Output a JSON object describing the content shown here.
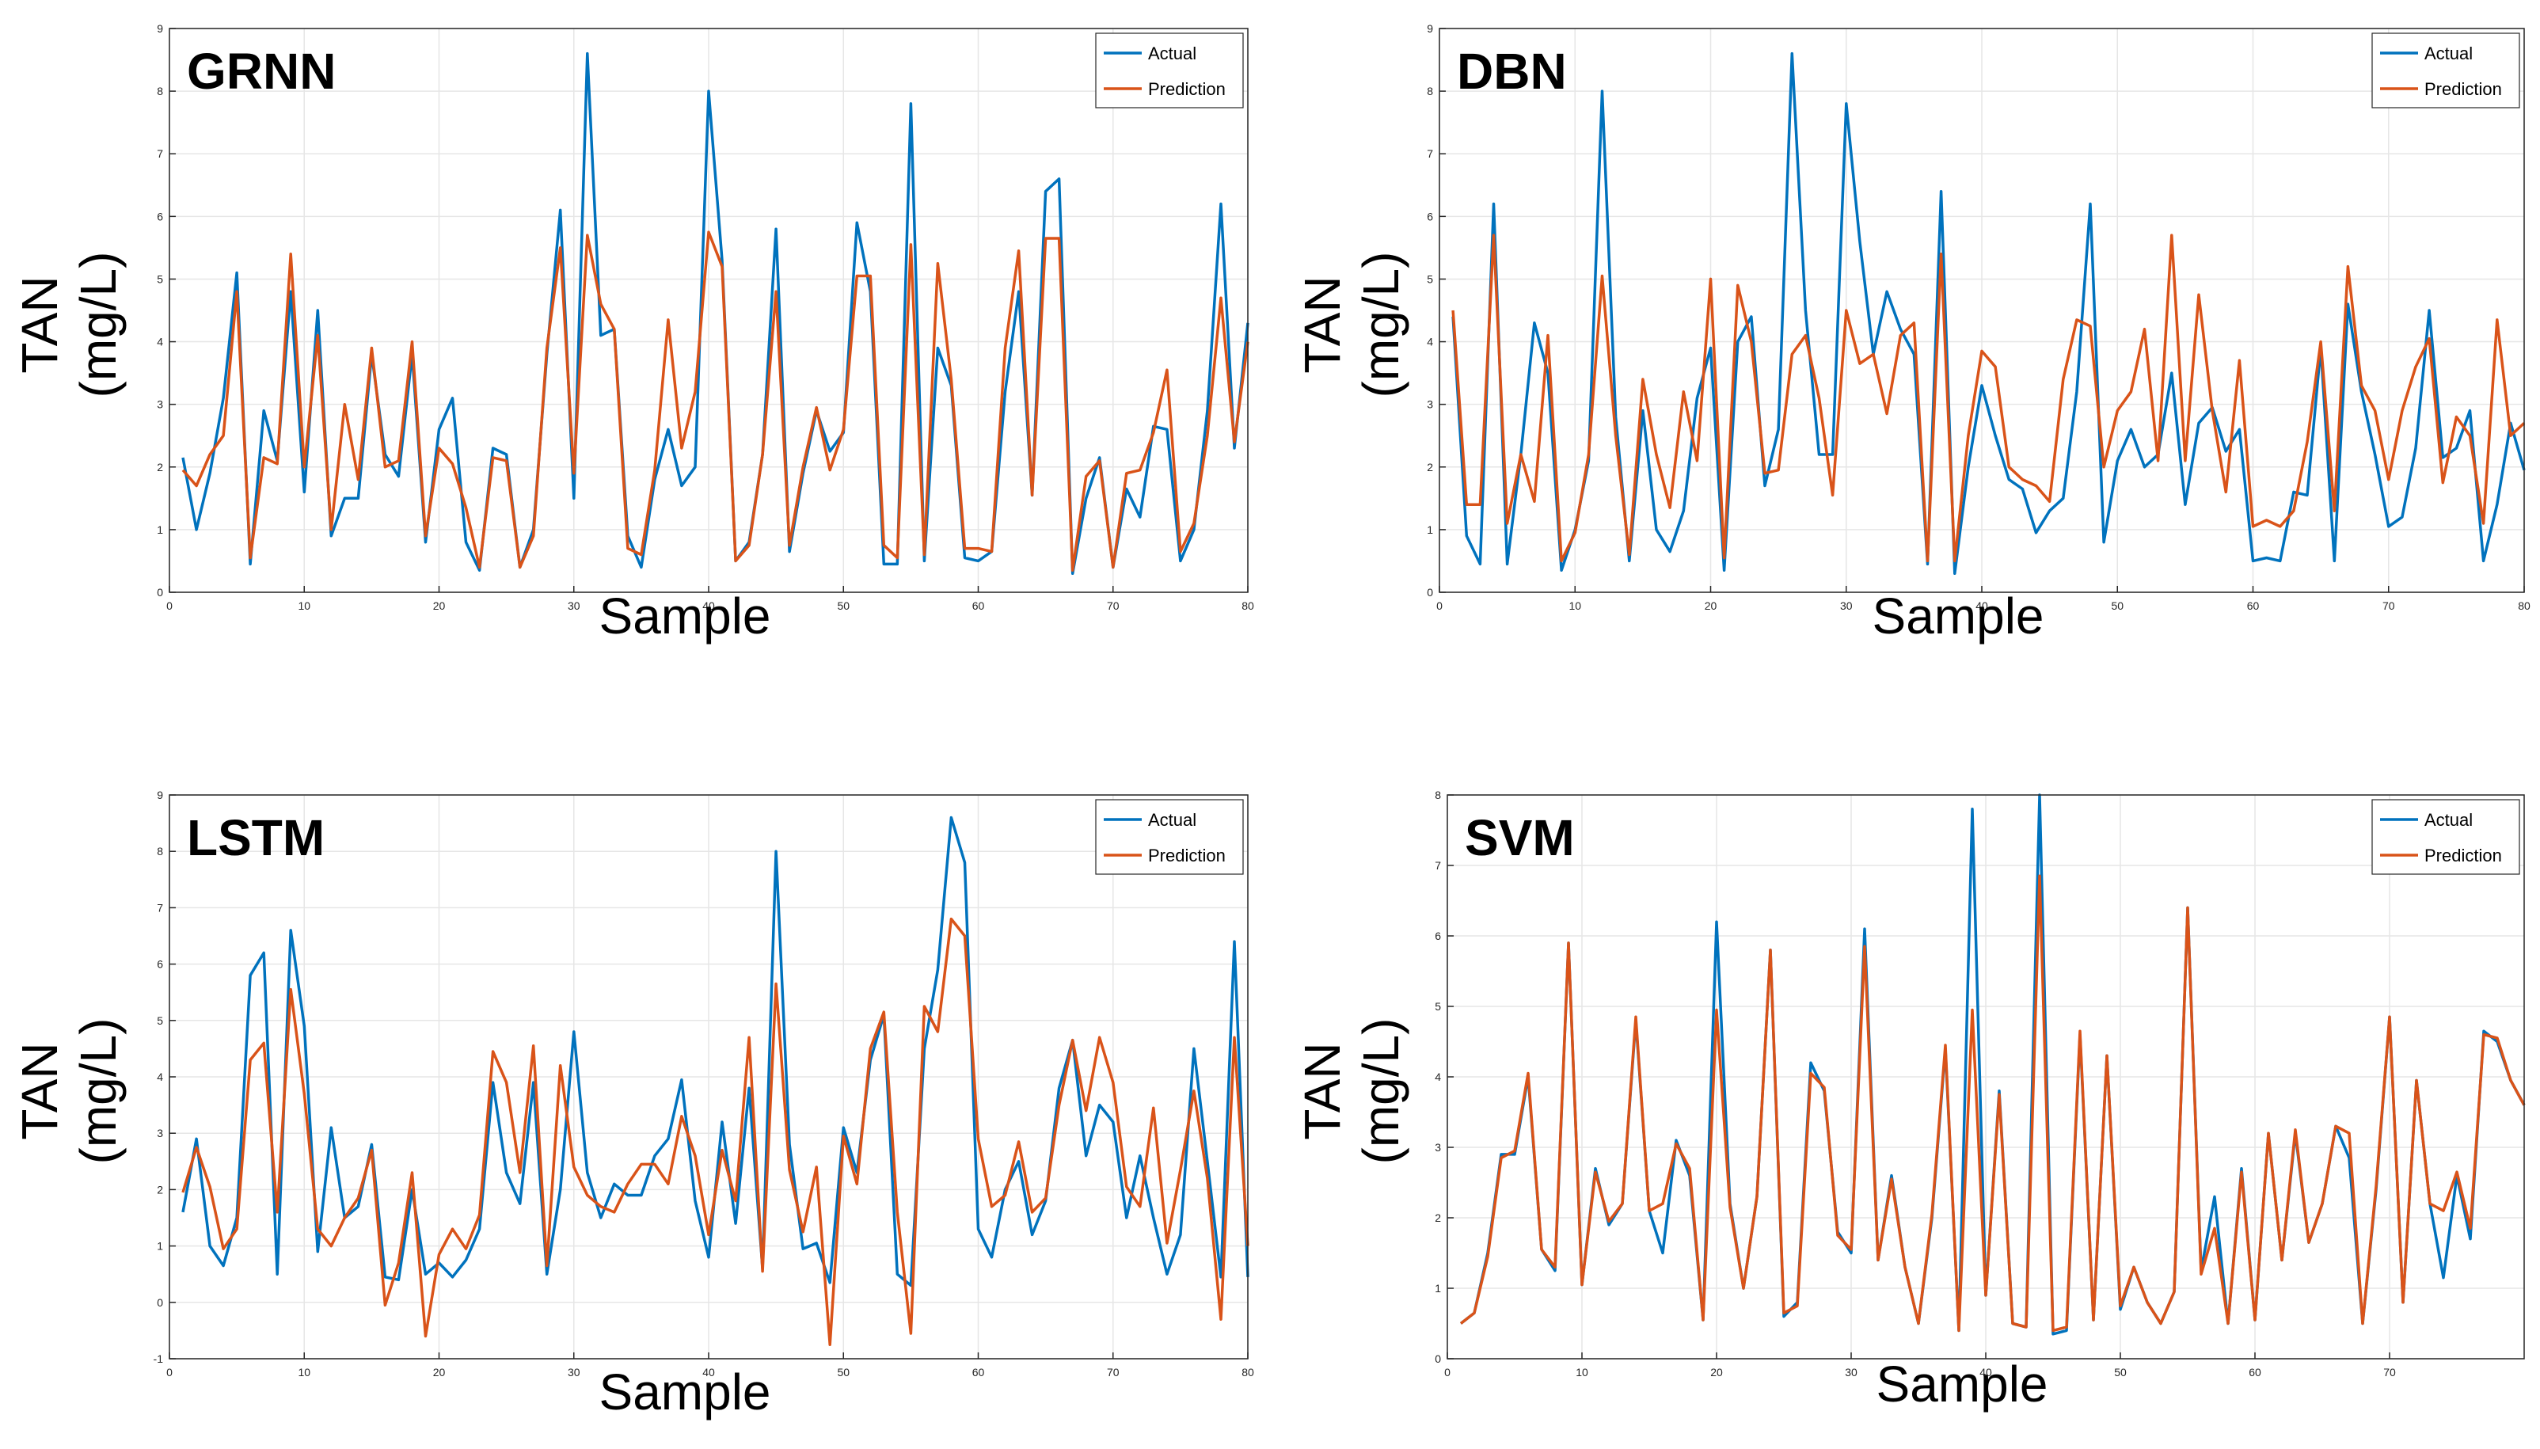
{
  "colors": {
    "actual": "#0072BD",
    "prediction": "#D95319",
    "grid": "#e6e6e6",
    "axis": "#262626"
  },
  "chart_data": [
    {
      "type": "line",
      "title": "GRNN",
      "xlabel": "Sample",
      "ylabel": [
        "TAN",
        "(mg/L)"
      ],
      "xlim": [
        0,
        80
      ],
      "ylim": [
        0,
        9
      ],
      "xticks": [
        0,
        10,
        20,
        30,
        40,
        50,
        60,
        70,
        80
      ],
      "yticks": [
        0,
        1,
        2,
        3,
        4,
        5,
        6,
        7,
        8,
        9
      ],
      "legend": [
        "Actual",
        "Prediction"
      ],
      "legend_location": "top-right",
      "x_start": 1,
      "series": [
        {
          "name": "Actual",
          "values": [
            2.15,
            1.0,
            1.9,
            3.1,
            5.1,
            0.45,
            2.9,
            2.1,
            4.8,
            1.6,
            4.5,
            0.9,
            1.5,
            1.5,
            3.8,
            2.2,
            1.85,
            3.8,
            0.8,
            2.6,
            3.1,
            0.8,
            0.35,
            2.3,
            2.2,
            0.4,
            1.0,
            3.8,
            6.1,
            1.5,
            8.6,
            4.1,
            4.2,
            0.9,
            0.4,
            1.8,
            2.6,
            1.7,
            2.0,
            8.0,
            5.3,
            0.5,
            0.8,
            2.2,
            5.8,
            0.65,
            1.9,
            2.9,
            2.25,
            2.55,
            5.9,
            4.8,
            0.45,
            0.45,
            7.8,
            0.5,
            3.9,
            3.3,
            0.55,
            0.5,
            0.65,
            3.2,
            4.8,
            1.55,
            6.4,
            6.6,
            0.3,
            1.5,
            2.15,
            0.4,
            1.65,
            1.2,
            2.65,
            2.6,
            0.5,
            1.0,
            2.9,
            6.2,
            2.3,
            4.3
          ]
        },
        {
          "name": "Prediction",
          "values": [
            1.95,
            1.7,
            2.2,
            2.5,
            4.8,
            0.55,
            2.15,
            2.05,
            5.4,
            2.0,
            4.1,
            1.0,
            3.0,
            1.8,
            3.9,
            2.0,
            2.1,
            4.0,
            0.9,
            2.3,
            2.05,
            1.35,
            0.4,
            2.15,
            2.1,
            0.4,
            0.9,
            3.9,
            5.5,
            1.9,
            5.7,
            4.6,
            4.2,
            0.7,
            0.6,
            1.95,
            4.35,
            2.3,
            3.2,
            5.75,
            5.2,
            0.5,
            0.75,
            2.2,
            4.8,
            0.75,
            2.0,
            2.95,
            1.95,
            2.6,
            5.05,
            5.05,
            0.75,
            0.55,
            5.55,
            0.6,
            5.25,
            3.4,
            0.7,
            0.7,
            0.65,
            3.9,
            5.45,
            1.55,
            5.65,
            5.65,
            0.35,
            1.85,
            2.1,
            0.4,
            1.9,
            1.95,
            2.55,
            3.55,
            0.65,
            1.1,
            2.5,
            4.7,
            2.4,
            4.0
          ]
        }
      ]
    },
    {
      "type": "line",
      "title": "DBN",
      "xlabel": "Sample",
      "ylabel": [
        "TAN",
        "(mg/L)"
      ],
      "xlim": [
        0,
        80
      ],
      "ylim": [
        0,
        9
      ],
      "xticks": [
        0,
        10,
        20,
        30,
        40,
        50,
        60,
        70,
        80
      ],
      "yticks": [
        0,
        1,
        2,
        3,
        4,
        5,
        6,
        7,
        8,
        9
      ],
      "legend": [
        "Actual",
        "Prediction"
      ],
      "legend_location": "top-right",
      "x_start": 1,
      "series": [
        {
          "name": "Actual",
          "values": [
            4.4,
            0.9,
            0.45,
            6.2,
            0.45,
            2.2,
            4.3,
            3.5,
            0.35,
            1.0,
            2.1,
            8.0,
            2.8,
            0.5,
            2.9,
            1.0,
            0.65,
            1.3,
            3.1,
            3.9,
            0.35,
            4.0,
            4.4,
            1.7,
            2.6,
            8.6,
            4.5,
            2.2,
            2.2,
            7.8,
            5.6,
            3.8,
            4.8,
            4.2,
            3.8,
            0.45,
            6.4,
            0.3,
            2.0,
            3.3,
            2.5,
            1.8,
            1.65,
            0.95,
            1.3,
            1.5,
            3.2,
            6.2,
            0.8,
            2.1,
            2.6,
            2.0,
            2.2,
            3.5,
            1.4,
            2.7,
            2.95,
            2.25,
            2.6,
            0.5,
            0.55,
            0.5,
            1.6,
            1.55,
            3.9,
            0.5,
            4.6,
            3.2,
            2.2,
            1.05,
            1.2,
            2.3,
            4.5,
            2.15,
            2.3,
            2.9,
            0.5,
            1.4,
            2.7,
            1.95
          ]
        },
        {
          "name": "Prediction",
          "values": [
            4.5,
            1.4,
            1.4,
            5.7,
            1.1,
            2.2,
            1.45,
            4.1,
            0.5,
            0.95,
            2.2,
            5.05,
            2.5,
            0.6,
            3.4,
            2.2,
            1.35,
            3.2,
            2.1,
            5.0,
            0.55,
            4.9,
            4.0,
            1.9,
            1.95,
            3.8,
            4.1,
            3.1,
            1.55,
            4.5,
            3.65,
            3.8,
            2.85,
            4.1,
            4.3,
            0.5,
            5.4,
            0.5,
            2.5,
            3.85,
            3.6,
            2.0,
            1.8,
            1.7,
            1.45,
            3.4,
            4.35,
            4.25,
            2.0,
            2.9,
            3.2,
            4.2,
            2.1,
            5.7,
            2.1,
            4.75,
            2.9,
            1.6,
            3.7,
            1.05,
            1.15,
            1.05,
            1.3,
            2.4,
            4.0,
            1.3,
            5.2,
            3.3,
            2.9,
            1.8,
            2.9,
            3.6,
            4.05,
            1.75,
            2.8,
            2.5,
            1.1,
            4.35,
            2.5,
            2.7
          ]
        }
      ]
    },
    {
      "type": "line",
      "title": "LSTM",
      "xlabel": "Sample",
      "ylabel": [
        "TAN",
        "(mg/L)"
      ],
      "xlim": [
        0,
        80
      ],
      "ylim": [
        -1,
        9
      ],
      "xticks": [
        0,
        10,
        20,
        30,
        40,
        50,
        60,
        70,
        80
      ],
      "yticks": [
        -1,
        0,
        1,
        2,
        3,
        4,
        5,
        6,
        7,
        8,
        9
      ],
      "legend": [
        "Actual",
        "Prediction"
      ],
      "legend_location": "top-right",
      "x_start": 1,
      "series": [
        {
          "name": "Actual",
          "values": [
            1.6,
            2.9,
            1.0,
            0.65,
            1.5,
            5.8,
            6.2,
            0.5,
            6.6,
            4.9,
            0.9,
            3.1,
            1.5,
            1.7,
            2.8,
            0.45,
            0.4,
            2.0,
            0.5,
            0.7,
            0.45,
            0.75,
            1.3,
            3.9,
            2.3,
            1.75,
            3.9,
            0.5,
            2.0,
            4.8,
            2.3,
            1.5,
            2.1,
            1.9,
            1.9,
            2.6,
            2.9,
            3.95,
            1.8,
            0.8,
            3.2,
            1.4,
            3.8,
            0.6,
            8.0,
            2.8,
            0.95,
            1.05,
            0.35,
            3.1,
            2.3,
            4.3,
            5.1,
            0.5,
            0.3,
            4.5,
            5.9,
            8.6,
            7.8,
            1.3,
            0.8,
            2.0,
            2.5,
            1.2,
            1.8,
            3.8,
            4.65,
            2.6,
            3.5,
            3.2,
            1.5,
            2.6,
            1.5,
            0.5,
            1.2,
            4.5,
            2.5,
            0.45,
            6.4,
            0.45
          ]
        },
        {
          "name": "Prediction",
          "values": [
            1.95,
            2.75,
            2.05,
            0.95,
            1.3,
            4.3,
            4.6,
            1.6,
            5.55,
            3.7,
            1.3,
            1.0,
            1.5,
            1.85,
            2.7,
            -0.05,
            0.7,
            2.3,
            -0.6,
            0.85,
            1.3,
            0.95,
            1.55,
            4.45,
            3.9,
            2.3,
            4.55,
            0.65,
            4.2,
            2.4,
            1.9,
            1.7,
            1.6,
            2.1,
            2.45,
            2.45,
            2.1,
            3.3,
            2.6,
            1.2,
            2.7,
            1.8,
            4.7,
            0.55,
            5.65,
            2.35,
            1.25,
            2.4,
            -0.75,
            2.95,
            2.1,
            4.5,
            5.15,
            1.6,
            -0.55,
            5.25,
            4.8,
            6.8,
            6.5,
            2.9,
            1.7,
            1.9,
            2.85,
            1.6,
            1.85,
            3.5,
            4.65,
            3.4,
            4.7,
            3.9,
            2.05,
            1.7,
            3.45,
            1.05,
            2.35,
            3.75,
            2.2,
            -0.3,
            4.7,
            1.0
          ]
        }
      ]
    },
    {
      "type": "line",
      "title": "SVM",
      "xlabel": "Sample",
      "ylabel": [
        "TAN",
        "(mg/L)"
      ],
      "xlim": [
        0,
        80
      ],
      "ylim": [
        0,
        8
      ],
      "xticks": [
        0,
        10,
        20,
        30,
        40,
        50,
        60,
        70
      ],
      "yticks": [
        0,
        1,
        2,
        3,
        4,
        5,
        6,
        7,
        8
      ],
      "legend": [
        "Actual",
        "Prediction"
      ],
      "legend_location": "top-right",
      "x_start": 1,
      "series": [
        {
          "name": "Actual",
          "values": [
            0.5,
            0.65,
            1.5,
            2.9,
            2.9,
            4.0,
            1.55,
            1.25,
            5.9,
            1.05,
            2.7,
            1.9,
            2.2,
            4.8,
            2.1,
            1.5,
            3.1,
            2.6,
            0.55,
            6.2,
            2.2,
            1.0,
            2.3,
            5.8,
            0.6,
            0.8,
            4.2,
            3.8,
            1.8,
            1.5,
            6.1,
            1.4,
            2.6,
            1.3,
            0.5,
            2.0,
            4.4,
            0.4,
            7.8,
            0.9,
            3.8,
            0.5,
            0.45,
            8.0,
            0.35,
            0.4,
            4.6,
            0.55,
            4.3,
            0.7,
            1.3,
            0.8,
            0.5,
            0.95,
            6.4,
            1.25,
            2.3,
            0.5,
            2.7,
            0.55,
            3.2,
            1.4,
            3.2,
            1.65,
            2.2,
            3.3,
            2.85,
            0.5,
            2.4,
            4.85,
            0.8,
            3.95,
            2.2,
            1.15,
            2.6,
            1.7,
            4.65,
            4.5,
            3.95,
            3.6
          ]
        },
        {
          "name": "Prediction",
          "values": [
            0.5,
            0.65,
            1.45,
            2.85,
            2.95,
            4.05,
            1.55,
            1.3,
            5.9,
            1.05,
            2.65,
            1.95,
            2.2,
            4.85,
            2.1,
            2.2,
            3.05,
            2.7,
            0.55,
            4.95,
            2.15,
            1.0,
            2.3,
            5.8,
            0.65,
            0.75,
            4.05,
            3.85,
            1.75,
            1.55,
            5.85,
            1.4,
            2.55,
            1.3,
            0.5,
            2.05,
            4.45,
            0.4,
            4.95,
            0.9,
            3.75,
            0.5,
            0.45,
            6.85,
            0.4,
            0.45,
            4.65,
            0.55,
            4.3,
            0.75,
            1.3,
            0.8,
            0.5,
            0.95,
            6.4,
            1.2,
            1.85,
            0.5,
            2.65,
            0.55,
            3.2,
            1.4,
            3.25,
            1.65,
            2.2,
            3.3,
            3.2,
            0.5,
            2.45,
            4.85,
            0.8,
            3.95,
            2.2,
            2.1,
            2.65,
            1.85,
            4.6,
            4.55,
            3.95,
            3.6
          ]
        }
      ]
    }
  ]
}
